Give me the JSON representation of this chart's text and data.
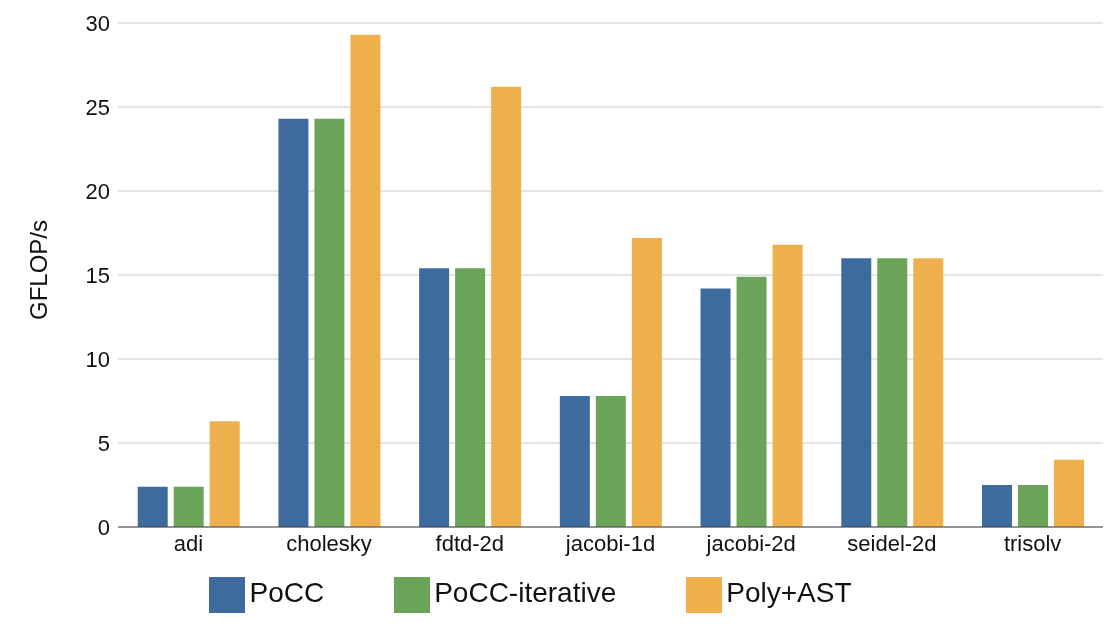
{
  "chart_data": {
    "type": "bar",
    "ylabel": "GFLOP/s",
    "categories": [
      "adi",
      "cholesky",
      "fdtd-2d",
      "jacobi-1d",
      "jacobi-2d",
      "seidel-2d",
      "trisolv"
    ],
    "series": [
      {
        "name": "PoCC",
        "color": "#3d6b9e",
        "values": [
          2.4,
          24.3,
          15.4,
          7.8,
          14.2,
          16.0,
          2.5
        ]
      },
      {
        "name": "PoCC-iterative",
        "color": "#6aa459",
        "values": [
          2.4,
          24.3,
          15.4,
          7.8,
          14.9,
          16.0,
          2.5
        ]
      },
      {
        "name": "Poly+AST",
        "color": "#eeb04d",
        "values": [
          6.3,
          29.3,
          26.2,
          17.2,
          16.8,
          16.0,
          4.0
        ]
      }
    ],
    "ylim": [
      0,
      30
    ],
    "yticks": [
      0,
      5,
      10,
      15,
      20,
      25,
      30
    ],
    "grid": "y",
    "legend": "bottom"
  }
}
